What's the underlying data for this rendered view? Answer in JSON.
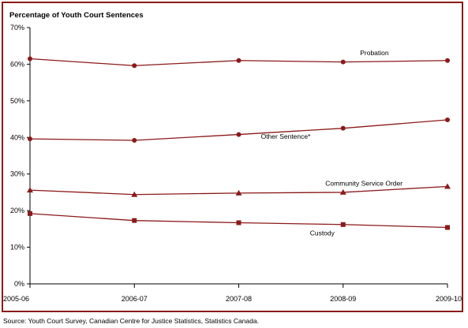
{
  "source": "Source:  Youth Court Survey, Canadian Centre for Justice Statistics, Statistics Canada.",
  "chart_data": {
    "type": "line",
    "title": "Percentage of Youth Court Sentences",
    "categories": [
      "2005-06",
      "2006-07",
      "2007-08",
      "2008-09",
      "2009-10"
    ],
    "y_ticks": [
      "0%",
      "10%",
      "20%",
      "30%",
      "40%",
      "50%",
      "60%",
      "70%"
    ],
    "ylim": [
      0,
      70
    ],
    "grid": false,
    "legend": "none (labels on lines)",
    "line_color": "#8b1a1a",
    "series": [
      {
        "name": "Probation",
        "marker": "circle",
        "values": [
          61.5,
          59.6,
          61.0,
          60.6,
          61.0
        ]
      },
      {
        "name": "Other Sentence*",
        "marker": "circle",
        "values": [
          39.6,
          39.2,
          40.8,
          42.5,
          44.8
        ]
      },
      {
        "name": "Community Service Order",
        "marker": "triangle",
        "values": [
          25.6,
          24.4,
          24.8,
          25.0,
          26.6
        ]
      },
      {
        "name": "Custody",
        "marker": "square",
        "values": [
          19.2,
          17.3,
          16.7,
          16.2,
          15.4
        ]
      }
    ]
  }
}
